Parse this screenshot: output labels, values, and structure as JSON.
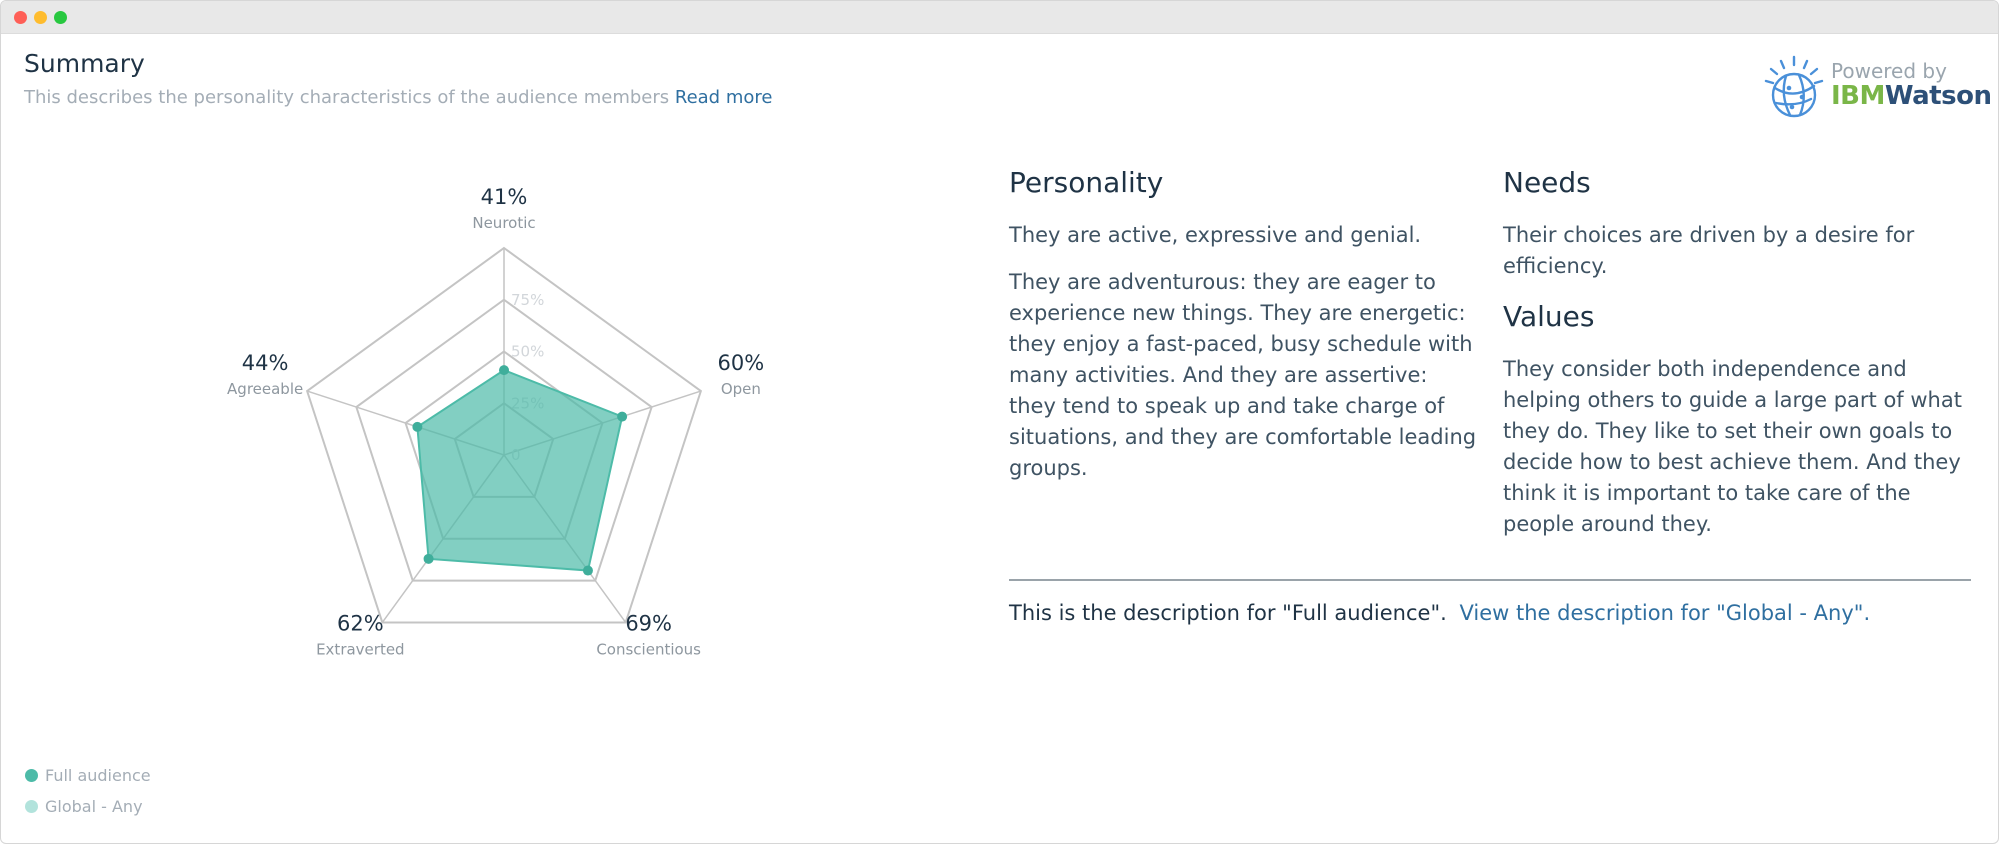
{
  "summary": {
    "title": "Summary",
    "description": "This describes the personality characteristics of the audience members",
    "read_more": "Read more"
  },
  "watson": {
    "powered_by": "Powered by",
    "brand_ibm": "IBM",
    "brand_watson": "Watson",
    "icon": "ibm-watson-globe-icon"
  },
  "colors": {
    "full_audience": "#4dbba8",
    "global_any": "#b2e3dc",
    "link": "#2f6fa0",
    "heading": "#1f3345",
    "muted": "#a4adb6"
  },
  "chart_data": {
    "type": "radar",
    "axes": [
      {
        "name": "Neurotic",
        "value": 41,
        "label": "41%"
      },
      {
        "name": "Open",
        "value": 60,
        "label": "60%"
      },
      {
        "name": "Conscientious",
        "value": 69,
        "label": "69%"
      },
      {
        "name": "Extraverted",
        "value": 62,
        "label": "62%"
      },
      {
        "name": "Agreeable",
        "value": 44,
        "label": "44%"
      }
    ],
    "scale_ticks": [
      "0",
      "25%",
      "50%",
      "75%"
    ],
    "range": [
      0,
      100
    ],
    "series": [
      {
        "name": "Full audience",
        "values": [
          41,
          60,
          69,
          62,
          44
        ]
      }
    ]
  },
  "legend": [
    {
      "name": "Full audience"
    },
    {
      "name": "Global - Any"
    }
  ],
  "personality": {
    "heading": "Personality",
    "p1": "They are active, expressive and genial.",
    "p2": "They are adventurous: they are eager to experience new things. They are energetic: they enjoy a fast-paced, busy schedule with many activities. And they are assertive: they tend to speak up and take charge of situations, and they are comfortable leading groups."
  },
  "needs": {
    "heading": "Needs",
    "p1": "Their choices are driven by a desire for efficiency."
  },
  "values": {
    "heading": "Values",
    "p1": "They consider both independence and helping others to guide a large part of what they do. They like to set their own goals to decide how to best achieve them. And they think it is important to take care of the people around they."
  },
  "footer": {
    "text": "This is the description for \"Full audience\".",
    "link": "View the description for \"Global - Any\"."
  }
}
